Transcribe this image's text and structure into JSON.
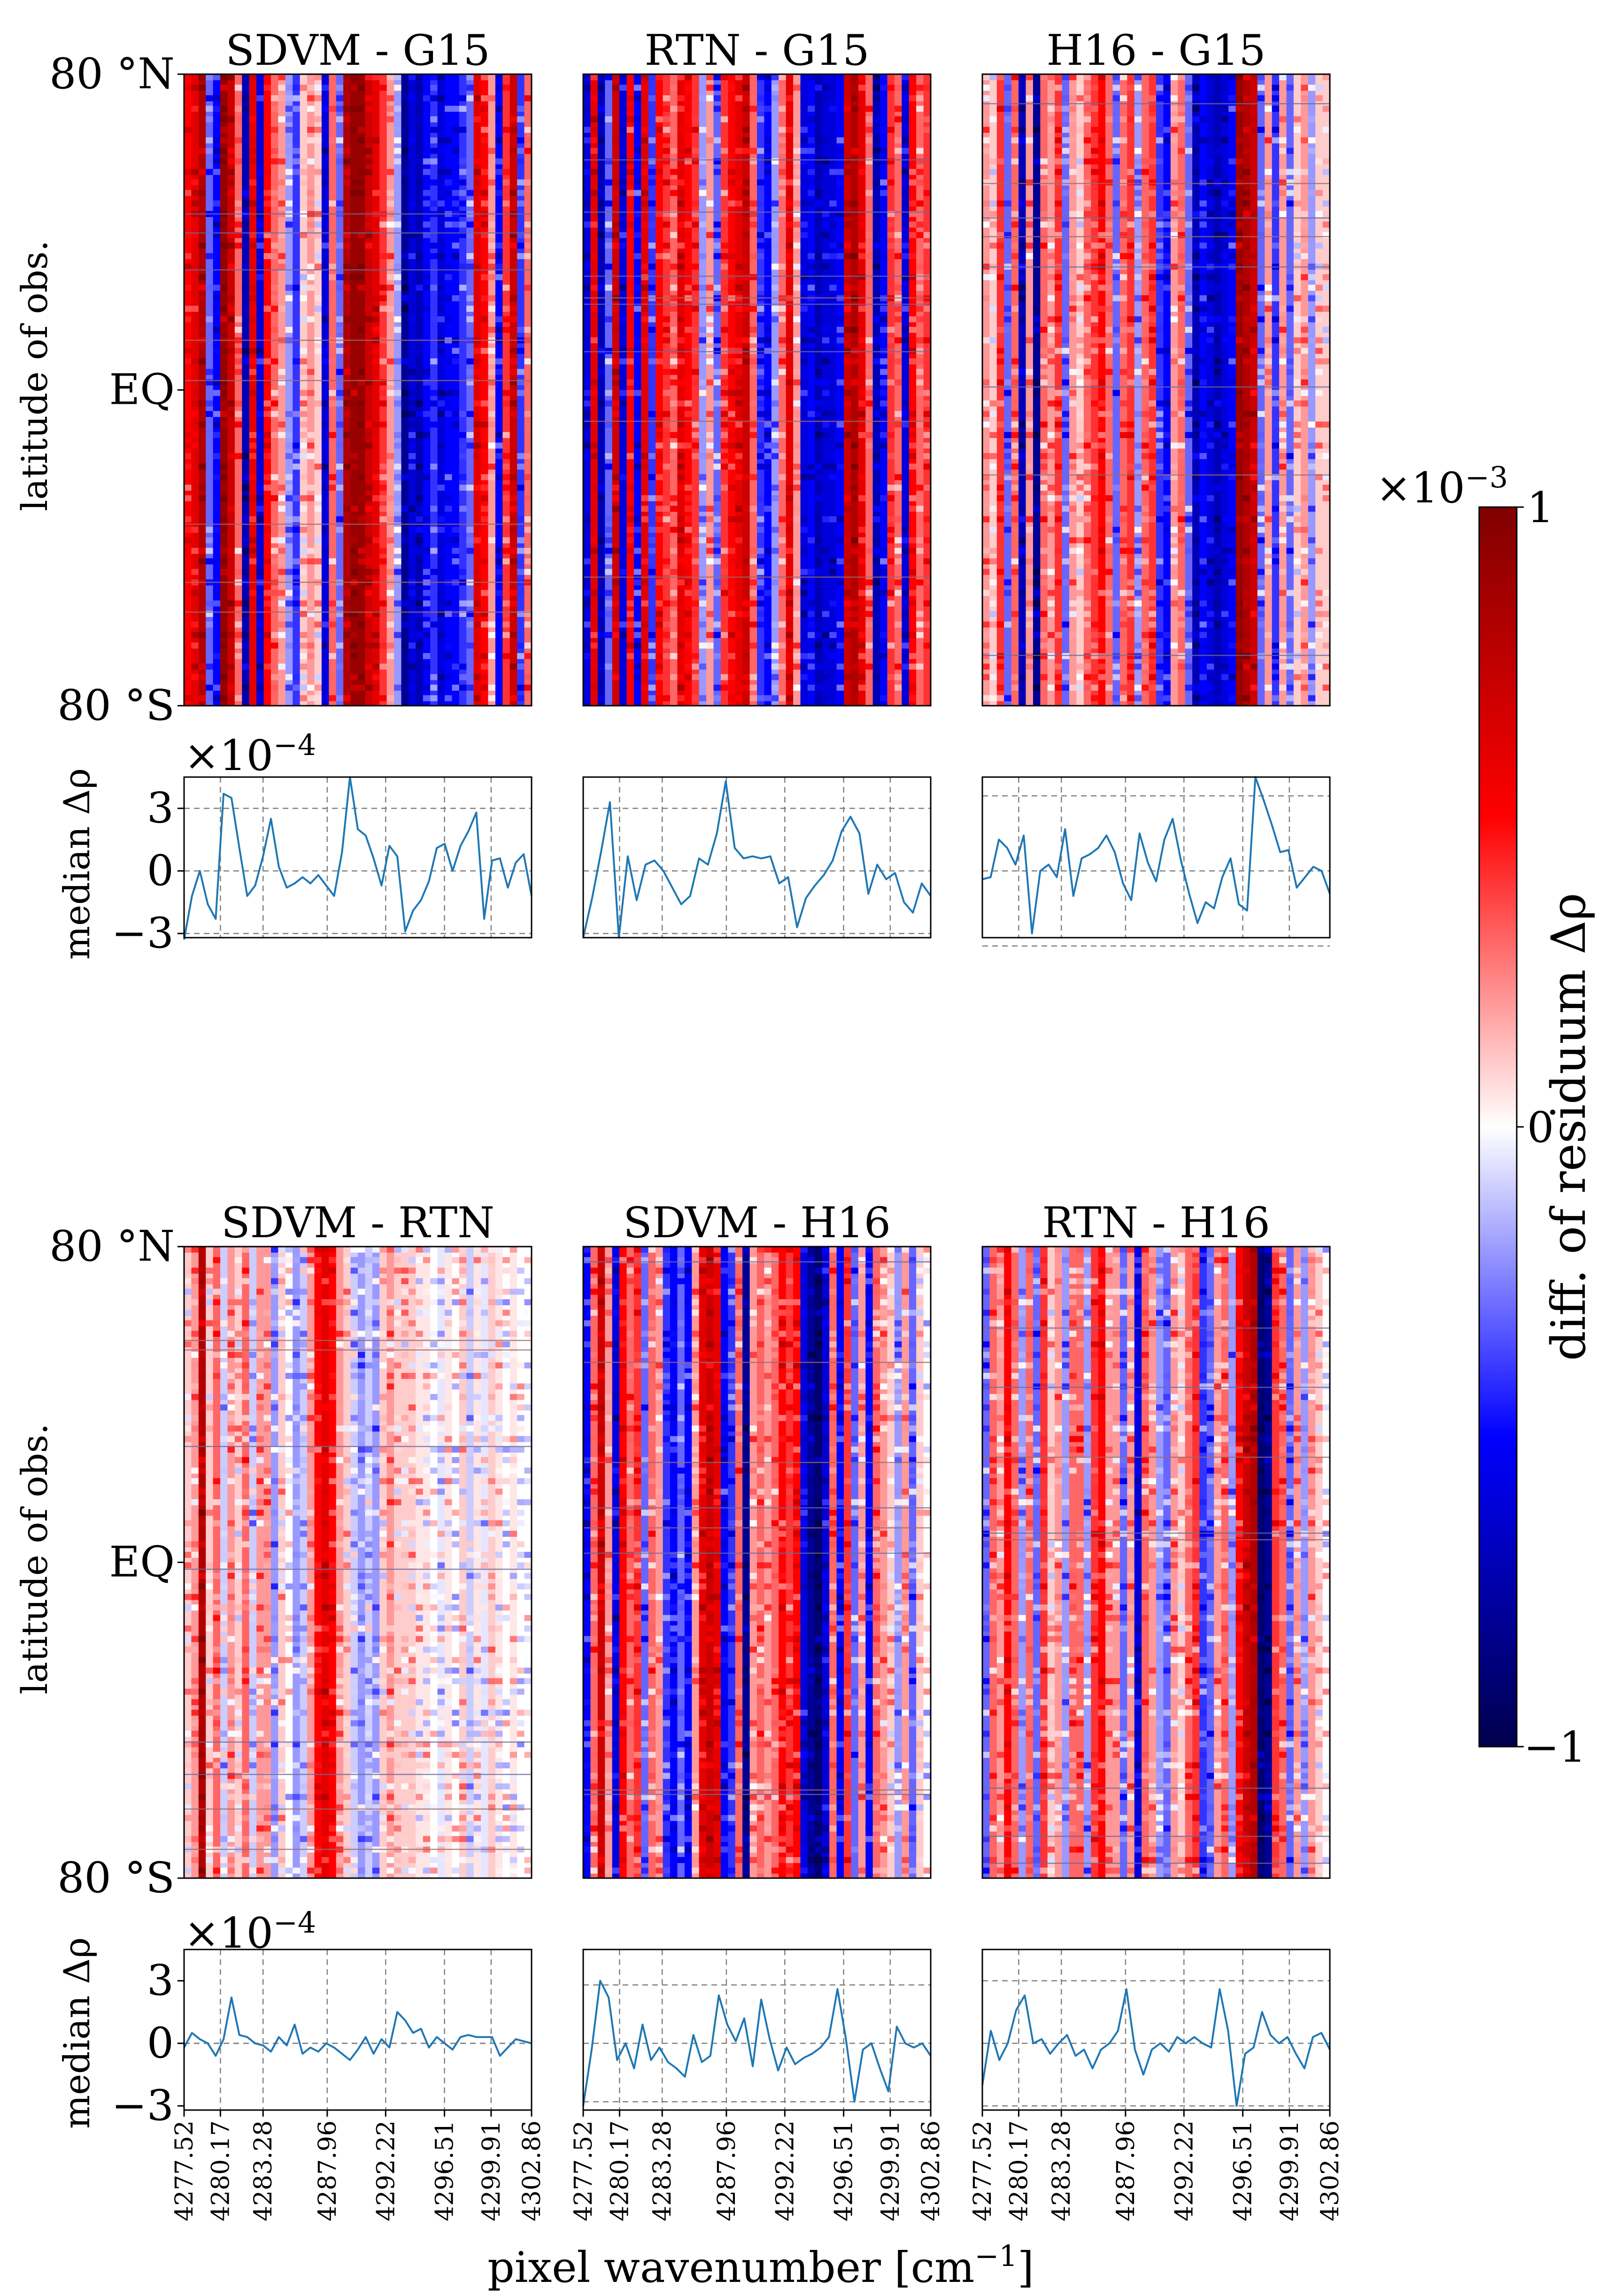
{
  "chart_data": {
    "type": "heatmap",
    "colorbar": {
      "label": "diff. of residuum Δρ",
      "multiplier": "×10",
      "multiplier_exp": "−3",
      "max_label": "1",
      "mid_label": "0",
      "min_label": "−1",
      "range": [
        -0.001,
        0.001
      ],
      "colormap": "seismic",
      "colors": [
        "#00004c",
        "#0000ff",
        "#ffffff",
        "#ff0000",
        "#7f0000"
      ]
    },
    "xlabel": "pixel wavenumber [cm",
    "xlabel_exp": "−1",
    "xlabel_close": "]",
    "x_ticks": [
      "4277.52",
      "4280.17",
      "4283.28",
      "4287.96",
      "4292.22",
      "4296.51",
      "4299.91",
      "4302.86"
    ],
    "x_range": [
      4277.52,
      4302.86
    ],
    "y_ticks": [
      "80 °N",
      "EQ",
      "80 °S"
    ],
    "ylabel_heat": "latitude of obs.",
    "ylabel_line": "median Δρ",
    "line_multiplier": "×10",
    "line_multiplier_exp": "−4",
    "line_ticks": [
      "3",
      "0",
      "−3"
    ],
    "line_ylim": [
      -3.2,
      4.5
    ],
    "line_color": "#1f77b4",
    "panels": [
      {
        "title": "SDVM - G15",
        "median": [
          -3.3,
          -1.2,
          0.0,
          -1.6,
          -2.3,
          3.7,
          3.5,
          1.1,
          -1.2,
          -0.7,
          0.7,
          2.5,
          0.2,
          -0.8,
          -0.6,
          -0.3,
          -0.6,
          -0.2,
          -0.7,
          -1.2,
          0.9,
          4.5,
          2.0,
          1.7,
          0.6,
          -0.7,
          1.2,
          0.7,
          -2.9,
          -1.9,
          -1.4,
          -0.5,
          1.1,
          1.3,
          0.0,
          1.2,
          1.9,
          2.8,
          -2.3,
          0.5,
          0.6,
          -0.8,
          0.4,
          0.8,
          -1.2
        ],
        "spread": 3.0,
        "stripes": [
          0.5,
          0.6,
          0.8,
          -0.3,
          -0.5,
          0.9,
          0.7,
          0.3,
          -0.7,
          0.6,
          -0.6,
          0.5,
          0.3,
          0.2,
          -0.2,
          -0.4,
          0.1,
          0.2,
          0.1,
          -0.6,
          0.3,
          -0.3,
          0.8,
          0.9,
          0.9,
          0.7,
          0.6,
          0.4,
          0.2,
          -0.2,
          -0.8,
          -0.6,
          -0.7,
          -0.5,
          -0.4,
          -0.6,
          -0.5,
          -0.5,
          -0.4,
          -0.3,
          0.6,
          0.5,
          0.2,
          -0.5,
          0.4,
          0.7,
          -0.4,
          0.3
        ]
      },
      {
        "title": "RTN - G15",
        "median": [
          -3.2,
          -1.3,
          0.9,
          3.3,
          -3.2,
          0.7,
          -1.4,
          0.3,
          0.5,
          0.0,
          -0.8,
          -1.6,
          -1.2,
          0.6,
          0.3,
          1.8,
          4.3,
          1.1,
          0.6,
          0.7,
          0.6,
          0.7,
          -0.6,
          -0.3,
          -2.7,
          -1.3,
          -0.7,
          -0.2,
          0.5,
          1.9,
          2.6,
          1.8,
          -1.1,
          0.3,
          -0.4,
          -0.1,
          -1.5,
          -2.0,
          -0.6,
          -1.2
        ],
        "spread": 3.0,
        "stripes": [
          -0.6,
          0.6,
          -0.7,
          -0.3,
          0.7,
          -0.6,
          0.5,
          -0.5,
          0.6,
          -0.4,
          0.5,
          0.4,
          0.3,
          0.6,
          0.5,
          0.4,
          -0.2,
          0.2,
          -0.3,
          0.4,
          0.5,
          0.6,
          0.7,
          0.3,
          -0.4,
          -0.5,
          -0.2,
          0.3,
          0.6,
          0.2,
          -0.6,
          -0.5,
          -0.7,
          -0.6,
          -0.6,
          -0.5,
          0.7,
          0.8,
          0.6,
          0.3,
          -0.7,
          -0.5,
          0.4,
          0.3,
          -0.6,
          0.5,
          0.3,
          0.4
        ]
      },
      {
        "title": "H16 - G15",
        "median": [
          -0.4,
          -0.3,
          1.5,
          1.1,
          0.3,
          1.7,
          -3.0,
          0.0,
          0.3,
          -0.3,
          2.0,
          -1.2,
          0.6,
          0.8,
          1.1,
          1.7,
          0.9,
          -0.6,
          -1.4,
          1.8,
          0.4,
          -0.5,
          1.5,
          2.5,
          0.5,
          -1.1,
          -2.5,
          -1.5,
          -1.8,
          -0.3,
          0.6,
          -1.6,
          -1.9,
          4.5,
          3.4,
          2.2,
          0.9,
          1.0,
          -0.8,
          -0.3,
          0.2,
          0.0,
          -1.1
        ],
        "spread": 3.6,
        "stripes": [
          0.2,
          0.1,
          0.4,
          -0.3,
          0.3,
          -0.7,
          0.2,
          -0.8,
          0.3,
          0.2,
          0.4,
          -0.3,
          0.2,
          0.1,
          0.3,
          0.4,
          0.5,
          0.3,
          -0.3,
          0.3,
          0.4,
          -0.2,
          0.3,
          0.4,
          -0.4,
          -0.5,
          0.2,
          0.3,
          -0.3,
          -0.7,
          -0.5,
          -0.6,
          -0.7,
          -0.6,
          -0.5,
          0.9,
          0.8,
          0.7,
          -0.3,
          0.2,
          -0.4,
          0.2,
          -0.3,
          0.1,
          0.2,
          -0.2,
          0.1,
          0.1
        ]
      },
      {
        "title": "SDVM - RTN",
        "median": [
          -0.2,
          0.5,
          0.2,
          0.0,
          -0.6,
          0.2,
          2.2,
          0.4,
          0.3,
          0.0,
          -0.1,
          -0.4,
          0.3,
          -0.1,
          0.9,
          -0.5,
          -0.2,
          -0.4,
          0.0,
          -0.2,
          -0.5,
          -0.8,
          -0.3,
          0.3,
          -0.5,
          0.2,
          -0.2,
          1.5,
          1.1,
          0.5,
          0.7,
          -0.2,
          0.3,
          0.0,
          -0.3,
          0.3,
          0.4,
          0.3,
          0.3,
          0.3,
          -0.6,
          -0.2,
          0.2,
          0.1,
          0.0
        ],
        "spread": 0.0,
        "stripes": [
          0.1,
          0.2,
          0.8,
          0.1,
          0.3,
          -0.1,
          0.2,
          0.1,
          0.3,
          -0.1,
          0.2,
          0.2,
          -0.2,
          0.1,
          0.0,
          -0.2,
          -0.1,
          0.2,
          0.5,
          0.6,
          0.5,
          0.2,
          0.1,
          -0.1,
          -0.2,
          -0.1,
          -0.2,
          0.1,
          0.2,
          0.1,
          0.1,
          0.1,
          0.05,
          0.05,
          0.0,
          -0.05,
          0.05,
          0.0,
          0.1,
          -0.1,
          0.05,
          -0.05,
          0.1,
          0.05,
          0.0,
          0.05,
          0.0,
          0.0
        ]
      },
      {
        "title": "SDVM - H16",
        "median": [
          -3.0,
          -0.3,
          3.0,
          2.2,
          -0.8,
          0.0,
          -1.2,
          0.9,
          -0.8,
          -0.2,
          -0.9,
          -1.2,
          -1.6,
          0.4,
          -0.9,
          -0.6,
          2.3,
          0.9,
          0.1,
          1.2,
          -1.1,
          2.1,
          0.2,
          -1.3,
          -0.2,
          -1.0,
          -0.7,
          -0.5,
          -0.2,
          0.3,
          2.6,
          0.2,
          -2.8,
          -0.3,
          0.0,
          -1.2,
          -2.3,
          0.8,
          0.0,
          -0.2,
          0.0,
          -0.6
        ],
        "spread": 2.8,
        "stripes": [
          -0.5,
          0.3,
          0.7,
          0.2,
          -0.6,
          0.5,
          0.3,
          0.4,
          -0.3,
          0.3,
          0.2,
          -0.4,
          -0.5,
          -0.3,
          -0.5,
          0.2,
          0.6,
          0.7,
          0.6,
          -0.5,
          -0.4,
          0.3,
          -0.8,
          0.2,
          0.3,
          0.2,
          0.3,
          0.5,
          0.4,
          0.5,
          -0.6,
          -0.8,
          -0.9,
          -0.6,
          0.3,
          -0.5,
          0.4,
          -0.3,
          0.2,
          -0.5,
          0.3,
          0.2,
          0.1,
          -0.2,
          0.2,
          -0.3,
          0.1,
          0.0
        ]
      },
      {
        "title": "RTN - H16",
        "median": [
          -2.0,
          0.6,
          -0.8,
          0.0,
          1.6,
          2.3,
          0.0,
          0.2,
          -0.5,
          0.0,
          0.4,
          -0.6,
          -0.3,
          -1.2,
          -0.3,
          0.0,
          0.6,
          2.6,
          -0.3,
          -1.5,
          -0.3,
          0.0,
          -0.4,
          0.3,
          0.0,
          0.3,
          0.0,
          -0.2,
          2.6,
          0.6,
          -3.0,
          -0.5,
          -0.2,
          1.5,
          0.4,
          0.0,
          0.3,
          -0.5,
          -1.2,
          0.3,
          0.5,
          -0.3
        ],
        "spread": 3.0,
        "stripes": [
          -0.3,
          0.3,
          0.2,
          0.5,
          0.3,
          -0.2,
          0.3,
          -0.3,
          0.4,
          0.1,
          0.2,
          -0.2,
          0.3,
          0.3,
          -0.2,
          0.4,
          0.5,
          0.2,
          0.2,
          -0.3,
          0.2,
          -0.6,
          0.3,
          0.2,
          -0.2,
          -0.3,
          0.2,
          0.1,
          0.3,
          0.4,
          -0.4,
          -0.3,
          0.2,
          0.3,
          -0.2,
          0.5,
          0.7,
          0.8,
          -0.9,
          -0.8,
          0.4,
          0.3,
          -0.3,
          0.2,
          -0.2,
          0.2,
          0.1,
          0.0
        ]
      }
    ]
  }
}
